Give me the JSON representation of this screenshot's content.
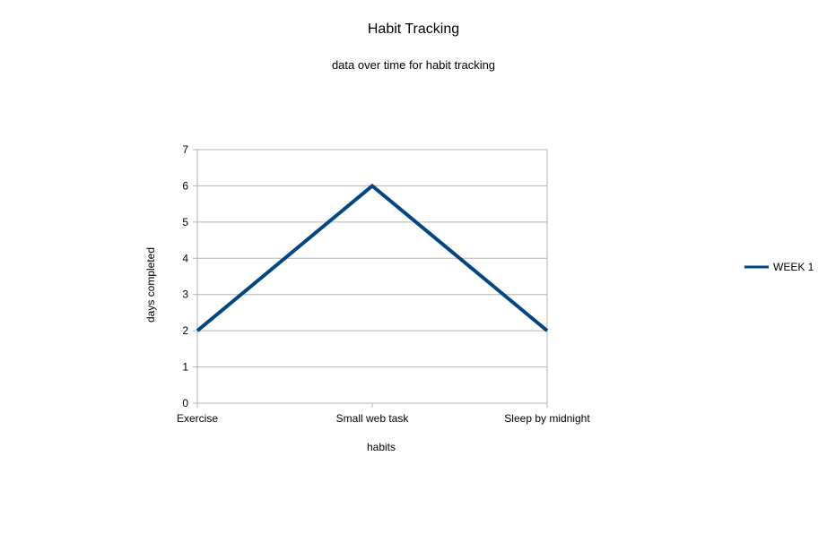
{
  "chart_data": {
    "type": "line",
    "title": "Habit Tracking",
    "subtitle": "data over time for habit tracking",
    "xlabel": "habits",
    "ylabel": "days completed",
    "categories": [
      "Exercise",
      "Small web task",
      "Sleep by midnight"
    ],
    "series": [
      {
        "name": "WEEK 1",
        "values": [
          2,
          6,
          2
        ],
        "color": "#004586"
      }
    ],
    "ylim": [
      0,
      7
    ],
    "yticks": [
      0,
      1,
      2,
      3,
      4,
      5,
      6,
      7
    ],
    "grid": true,
    "legend_position": "right"
  }
}
